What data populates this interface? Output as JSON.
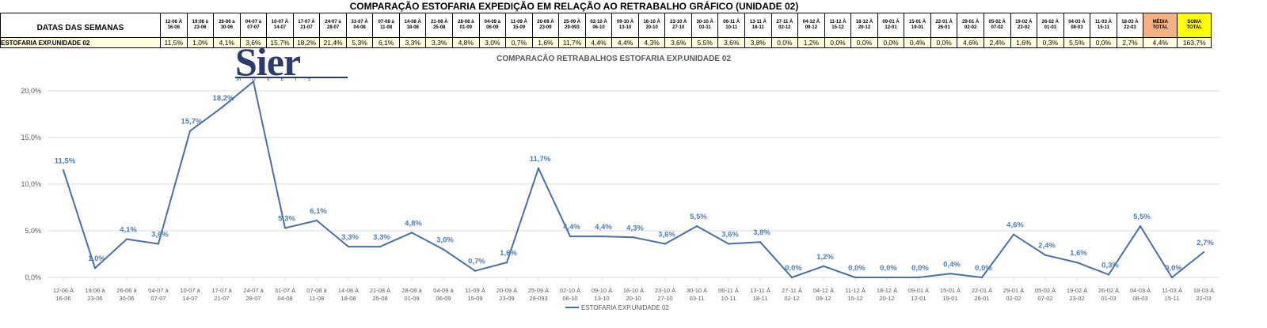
{
  "sheet_title": "COMPARAÇÃO ESTOFARIA EXPEDIÇÃO  EM RELAÇÃO AO RETRABALHO GRÁFICO (UNIDADE 02)",
  "table": {
    "header_label": "DATAS DAS SEMANAS",
    "row_label": "ESTOFARIA EXP.UNIDADE 02",
    "weeks": [
      [
        "12-06 À",
        "16-06"
      ],
      [
        "19:06 à",
        "23-06"
      ],
      [
        "26-06 à",
        "30-06"
      ],
      [
        "04-07 à",
        "07-07"
      ],
      [
        "10-07 À",
        "14-07"
      ],
      [
        "17-07 À",
        "21-07"
      ],
      [
        "24-07 à",
        "28-07"
      ],
      [
        "31-07 À",
        "04-08"
      ],
      [
        "07-08 à",
        "11-08"
      ],
      [
        "14-08 À",
        "18-08"
      ],
      [
        "21-08 À",
        "25-08"
      ],
      [
        "28-08 à",
        "01-09"
      ],
      [
        "04-09 à",
        "06-09"
      ],
      [
        "11-09 À",
        "15-09"
      ],
      [
        "20-09 À",
        "23-09"
      ],
      [
        "25-09 À",
        "29-093"
      ],
      [
        "02-10 À",
        "06-10"
      ],
      [
        "09-10 À",
        "13-10"
      ],
      [
        "16-10 À",
        "20-10"
      ],
      [
        "23-10 À",
        "27-10"
      ],
      [
        "30-10 À",
        "03-11"
      ],
      [
        "06-11 À",
        "10-11"
      ],
      [
        "13-11 À",
        "18-11"
      ],
      [
        "27-11 À",
        "02-12"
      ],
      [
        "04-12 À",
        "09-12"
      ],
      [
        "11-12 À",
        "15-12"
      ],
      [
        "18-12 À",
        "20-12"
      ],
      [
        "09-01 À",
        "12-01"
      ],
      [
        "15-01 À",
        "19-01"
      ],
      [
        "22-01 À",
        "26-01"
      ],
      [
        "29-01 À",
        "02-02"
      ],
      [
        "05-02 À",
        "07-02"
      ],
      [
        "19-02 À",
        "23-02"
      ],
      [
        "26-02 À",
        "01-03"
      ],
      [
        "04-03 À",
        "08-03"
      ],
      [
        "11-03 À",
        "15-11"
      ],
      [
        "18-03 À",
        "22-03"
      ]
    ],
    "values": [
      "11,5%",
      "1,0%",
      "4,1%",
      "3,6%",
      "15,7%",
      "18,2%",
      "21,4%",
      "5,3%",
      "6,1%",
      "3,3%",
      "3,3%",
      "4,8%",
      "3,0%",
      "0,7%",
      "1,6%",
      "11,7%",
      "4,4%",
      "4,4%",
      "4,3%",
      "3,6%",
      "5,5%",
      "3,6%",
      "3,8%",
      "0,0%",
      "1,2%",
      "0,0%",
      "0,0%",
      "0,0%",
      "0,4%",
      "0,0%",
      "4,6%",
      "2,4%",
      "1,6%",
      "0,3%",
      "5,5%",
      "0,0%",
      "2,7%"
    ],
    "media_header": [
      "MÉDIA",
      "TOTAL"
    ],
    "media_value": "4,4%",
    "soma_header": [
      "SOMA",
      "TOTAL"
    ],
    "soma_value": "163,7%"
  },
  "logo": {
    "text": "Sier",
    "subtext": "MÓVEIS"
  },
  "chart_data": {
    "type": "line",
    "title": "COMPARACÃO RETRABALHOS  ESTOFARIA EXP.UNIDADE 02",
    "categories": [
      [
        "12-06 À",
        "16-06"
      ],
      [
        "19:06 à",
        "23-06"
      ],
      [
        "26-06 à",
        "30-06"
      ],
      [
        "04-07 à",
        "07-07"
      ],
      [
        "10-07 à",
        "14-07"
      ],
      [
        "17-07 à",
        "21-07"
      ],
      [
        "24-07 à",
        "28-07"
      ],
      [
        "31-07 À",
        "04-08"
      ],
      [
        "07-08 à",
        "11-08"
      ],
      [
        "14-08 À",
        "18-08"
      ],
      [
        "21-08 À",
        "25-08"
      ],
      [
        "28-08 à",
        "01-09"
      ],
      [
        "04-09 à",
        "06-09"
      ],
      [
        "11-09 À",
        "15-09"
      ],
      [
        "20-09 À",
        "23-09"
      ],
      [
        "25-09 À",
        "29-093"
      ],
      [
        "02-10 À",
        "06-10"
      ],
      [
        "09-10 À",
        "13-10"
      ],
      [
        "16-10 À",
        "20-10"
      ],
      [
        "23-10 À",
        "27-10"
      ],
      [
        "30-10 À",
        "03-11"
      ],
      [
        "06-11 À",
        "10-11"
      ],
      [
        "13-11 À",
        "18-11"
      ],
      [
        "27-11 À",
        "02-12"
      ],
      [
        "04-12 À",
        "09-12"
      ],
      [
        "11-12 À",
        "15-12"
      ],
      [
        "18-12 À",
        "20-12"
      ],
      [
        "09-01 À",
        "12-01"
      ],
      [
        "15-01 À",
        "19-01"
      ],
      [
        "22-01 À",
        "26-01"
      ],
      [
        "29-01 À",
        "02-02"
      ],
      [
        "05-02 À",
        "07-02"
      ],
      [
        "19-02 À",
        "23-02"
      ],
      [
        "26-02 À",
        "01-03"
      ],
      [
        "04-03 À",
        "08-03"
      ],
      [
        "11-03 À",
        "15-11"
      ],
      [
        "18-03 À",
        "22-03"
      ]
    ],
    "series": [
      {
        "name": "ESTOFARIA EXP.UNIDADE 02",
        "color": "#4a6fa5",
        "values": [
          0.115,
          0.01,
          0.041,
          0.036,
          0.157,
          0.182,
          0.214,
          0.053,
          0.061,
          0.033,
          0.033,
          0.048,
          0.03,
          0.007,
          0.016,
          0.117,
          0.044,
          0.044,
          0.043,
          0.036,
          0.055,
          0.036,
          0.038,
          0.0,
          0.012,
          0.0,
          0.0,
          0.0,
          0.004,
          0.0,
          0.046,
          0.024,
          0.016,
          0.003,
          0.055,
          0.0,
          0.027
        ],
        "labels": [
          "11,5%",
          "1,0%",
          "4,1%",
          "3,6%",
          "15,7%",
          "18,2%",
          "",
          "5,3%",
          "6,1%",
          "3,3%",
          "3,3%",
          "4,8%",
          "3,0%",
          "0,7%",
          "1,6%",
          "11,7%",
          "4,4%",
          "4,4%",
          "4,3%",
          "3,6%",
          "5,5%",
          "3,6%",
          "3,8%",
          "0,0%",
          "1,2%",
          "0,0%",
          "0,0%",
          "0,0%",
          "0,4%",
          "0,0%",
          "4,6%",
          "2,4%",
          "1,6%",
          "0,3%",
          "5,5%",
          "0,0%",
          "2,7%"
        ]
      }
    ],
    "yticks": [
      0,
      0.05,
      0.1,
      0.15,
      0.2
    ],
    "ytick_labels": [
      "0,0%",
      "5,0%",
      "10,0%",
      "15,0%",
      "20,0%"
    ],
    "ylim": [
      0,
      0.21
    ],
    "grid": true,
    "legend": "bottom",
    "colors": {
      "line": "#4a6fa5",
      "label": "#4a7ebb",
      "grid": "#d9d9d9",
      "axis_text": "#595959"
    }
  }
}
